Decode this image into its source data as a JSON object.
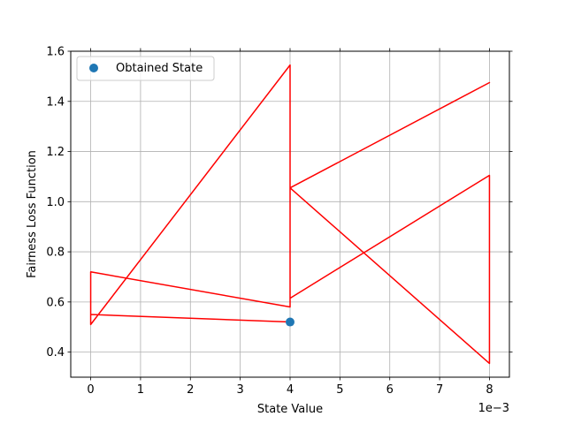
{
  "chart_data": {
    "type": "line",
    "xlabel": "State Value",
    "ylabel": "Fairness Loss Function",
    "x_offset_text": "1e−3",
    "xlim": [
      -0.0004,
      0.0084
    ],
    "ylim": [
      0.3,
      1.6
    ],
    "x_ticks": [
      0,
      0.001,
      0.002,
      0.003,
      0.004,
      0.005,
      0.006,
      0.007,
      0.008
    ],
    "x_tick_labels": [
      "0",
      "1",
      "2",
      "3",
      "4",
      "5",
      "6",
      "7",
      "8"
    ],
    "y_ticks": [
      0.4,
      0.6,
      0.8,
      1.0,
      1.2,
      1.4,
      1.6
    ],
    "y_tick_labels": [
      "0.4",
      "0.6",
      "0.8",
      "1.0",
      "1.2",
      "1.4",
      "1.6"
    ],
    "grid": true,
    "legend": {
      "placement": "top-left",
      "entries": [
        "Obtained State"
      ]
    },
    "series": [
      {
        "kind": "line",
        "color": "#ff0000",
        "x": [
          0.004,
          0,
          0,
          0.004,
          0.004,
          0.004,
          0.008,
          0.004,
          0.008,
          0.008,
          0.004,
          0.004,
          0,
          0
        ],
        "y": [
          0.52,
          0.55,
          0.72,
          0.58,
          1.545,
          1.055,
          1.475,
          1.055,
          0.355,
          1.105,
          0.615,
          1.545,
          0.51,
          0.55
        ]
      },
      {
        "kind": "scatter",
        "name": "Obtained State",
        "color": "#1f77b4",
        "x": [
          0.004
        ],
        "y": [
          0.52
        ]
      }
    ]
  }
}
